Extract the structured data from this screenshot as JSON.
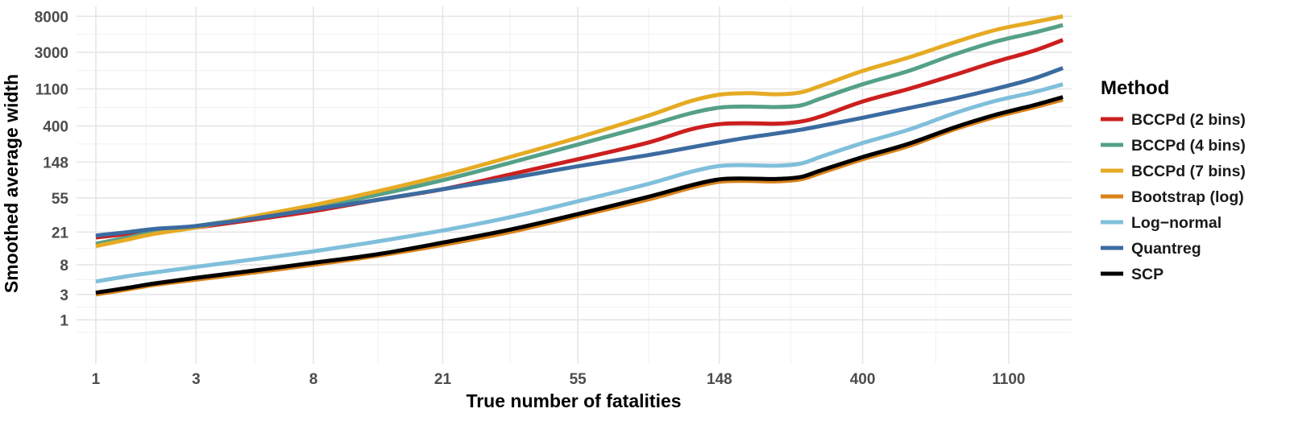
{
  "chart_data": {
    "type": "line",
    "title": "",
    "xlabel": "True number of fatalities",
    "ylabel": "Smoothed average width",
    "x_scale": "log1p",
    "y_scale": "log1p",
    "xlim": [
      0.75,
      1700
    ],
    "ylim": [
      -0.4,
      10500
    ],
    "x_ticks": [
      1,
      3,
      8,
      21,
      55,
      148,
      400,
      1100
    ],
    "x_tick_labels": [
      "1",
      "3",
      "8",
      "21",
      "55",
      "148",
      "400",
      "1100"
    ],
    "y_ticks": [
      1,
      3,
      8,
      21,
      55,
      148,
      400,
      1100,
      3000,
      8000
    ],
    "y_tick_labels": [
      "1",
      "3",
      "8",
      "21",
      "55",
      "148",
      "400",
      "1100",
      "3000",
      "8000"
    ],
    "grid": true,
    "legend": {
      "title": "Method",
      "position": "right"
    },
    "x": [
      1,
      1.5,
      2,
      3,
      5,
      8,
      13,
      21,
      34,
      55,
      89,
      120,
      148,
      180,
      220,
      260,
      300,
      400,
      550,
      750,
      1000,
      1300,
      1600
    ],
    "series": [
      {
        "name": "BCCPd (2 bins)",
        "color": "#cc1f1f",
        "values": [
          18,
          20,
          22,
          24,
          30,
          38,
          52,
          70,
          105,
          160,
          250,
          360,
          420,
          430,
          425,
          450,
          520,
          780,
          1100,
          1600,
          2300,
          3100,
          4200
        ]
      },
      {
        "name": "BCCPd (4 bins)",
        "color": "#55a088",
        "values": [
          15,
          18,
          21,
          25,
          32,
          42,
          60,
          90,
          145,
          240,
          400,
          560,
          660,
          680,
          670,
          700,
          850,
          1250,
          1800,
          2800,
          4000,
          5100,
          6300
        ]
      },
      {
        "name": "BCCPd (7 bins)",
        "color": "#e6ab24",
        "values": [
          14,
          17,
          20,
          24,
          33,
          45,
          66,
          102,
          170,
          290,
          520,
          780,
          940,
          980,
          950,
          1000,
          1200,
          1800,
          2600,
          3900,
          5500,
          6800,
          8000
        ]
      },
      {
        "name": "Bootstrap (log)",
        "color": "#d9821a",
        "values": [
          3.0,
          3.6,
          4.2,
          5.0,
          6.3,
          8.0,
          10.5,
          14.5,
          21,
          33,
          52,
          72,
          86,
          88,
          87,
          92,
          110,
          160,
          230,
          360,
          510,
          660,
          820
        ]
      },
      {
        "name": "Log−normal",
        "color": "#80bfdb",
        "values": [
          4.7,
          5.6,
          6.3,
          7.5,
          9.5,
          12,
          16,
          22,
          32,
          50,
          80,
          112,
          133,
          136,
          134,
          142,
          172,
          250,
          360,
          560,
          790,
          1000,
          1250
        ]
      },
      {
        "name": "Quantreg",
        "color": "#3b6ba0",
        "values": [
          19,
          21,
          23,
          25,
          31,
          40,
          52,
          70,
          95,
          132,
          178,
          220,
          255,
          290,
          325,
          360,
          400,
          500,
          650,
          840,
          1100,
          1450,
          1950
        ]
      },
      {
        "name": "SCP",
        "color": "#000000",
        "values": [
          3.2,
          3.8,
          4.4,
          5.3,
          6.7,
          8.5,
          11,
          15.5,
          22.5,
          35,
          56,
          77,
          92,
          94,
          93,
          98,
          118,
          170,
          245,
          380,
          540,
          700,
          880
        ]
      }
    ]
  }
}
